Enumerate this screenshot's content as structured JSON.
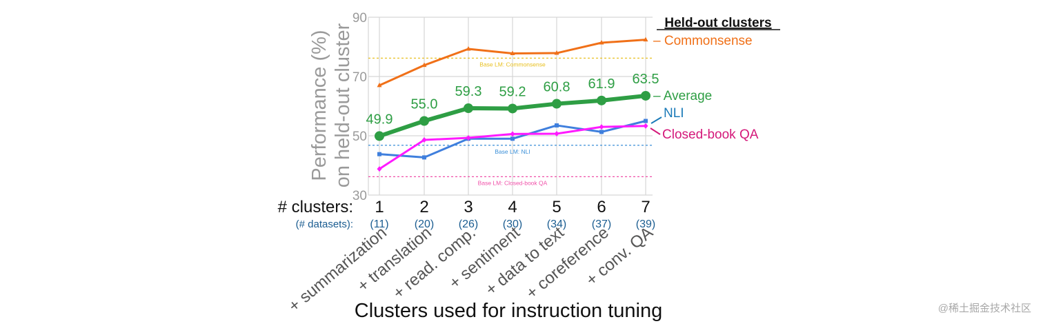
{
  "chart_data": {
    "type": "line",
    "ylabel_line1": "Performance (%)",
    "ylabel_line2": "on held-out cluster",
    "xlabel": "Clusters used for instruction tuning",
    "ylim": [
      30,
      90
    ],
    "y_ticks": [
      30,
      50,
      70,
      90
    ],
    "x_prefix_label": "# clusters:",
    "dataset_prefix_label": "(# datasets):",
    "x": [
      1,
      2,
      3,
      4,
      5,
      6,
      7
    ],
    "x_tick_labels": [
      "1",
      "2",
      "3",
      "4",
      "5",
      "6",
      "7"
    ],
    "dataset_counts": [
      "(11)",
      "(20)",
      "(26)",
      "(30)",
      "(34)",
      "(37)",
      "(39)"
    ],
    "cluster_labels": [
      "+ summarization",
      "+ translation",
      "+ read. comp.",
      "+ sentiment",
      "+ data to text",
      "+ coreference",
      "+ conv. QA"
    ],
    "legend_title": "Held-out clusters",
    "series": [
      {
        "name": "Commonsense",
        "legend_label": "– Commonsense",
        "color": "#f07018",
        "marker": "triangle",
        "values": [
          67.0,
          73.8,
          79.3,
          77.8,
          77.9,
          81.4,
          82.4
        ]
      },
      {
        "name": "Average",
        "legend_label": "– Average",
        "color": "#2e9e44",
        "marker": "circle",
        "values": [
          49.9,
          55.0,
          59.3,
          59.2,
          60.8,
          61.9,
          63.5
        ],
        "data_labels": [
          "49.9",
          "55.0",
          "59.3",
          "59.2",
          "60.8",
          "61.9",
          "63.5"
        ]
      },
      {
        "name": "NLI",
        "legend_label": "NLI",
        "color": "#3f7fdd",
        "marker": "square",
        "values": [
          43.8,
          42.7,
          49.0,
          49.0,
          53.5,
          51.3,
          55.0
        ]
      },
      {
        "name": "Closed-book QA",
        "legend_label": "Closed-book QA",
        "color": "#ff1aff",
        "marker": "diamond",
        "values": [
          38.8,
          48.6,
          49.3,
          50.6,
          50.7,
          53.0,
          53.3
        ]
      }
    ],
    "baselines": [
      {
        "label": "Base LM: Commonsense",
        "value": 76.2,
        "color": "#e8c020"
      },
      {
        "label": "Base LM: NLI",
        "value": 46.8,
        "color": "#3a8fd8"
      },
      {
        "label": "Base LM: Closed-book QA",
        "value": 36.2,
        "color": "#f04fa8"
      }
    ]
  },
  "colors": {
    "axis_text": "#9a9a9a",
    "grid": "#d6d6d6",
    "dataset_text": "#1a5c90",
    "nli_legend": "#1a7ab8",
    "cbqa_legend": "#d4187a"
  },
  "watermark": "@稀土掘金技术社区"
}
